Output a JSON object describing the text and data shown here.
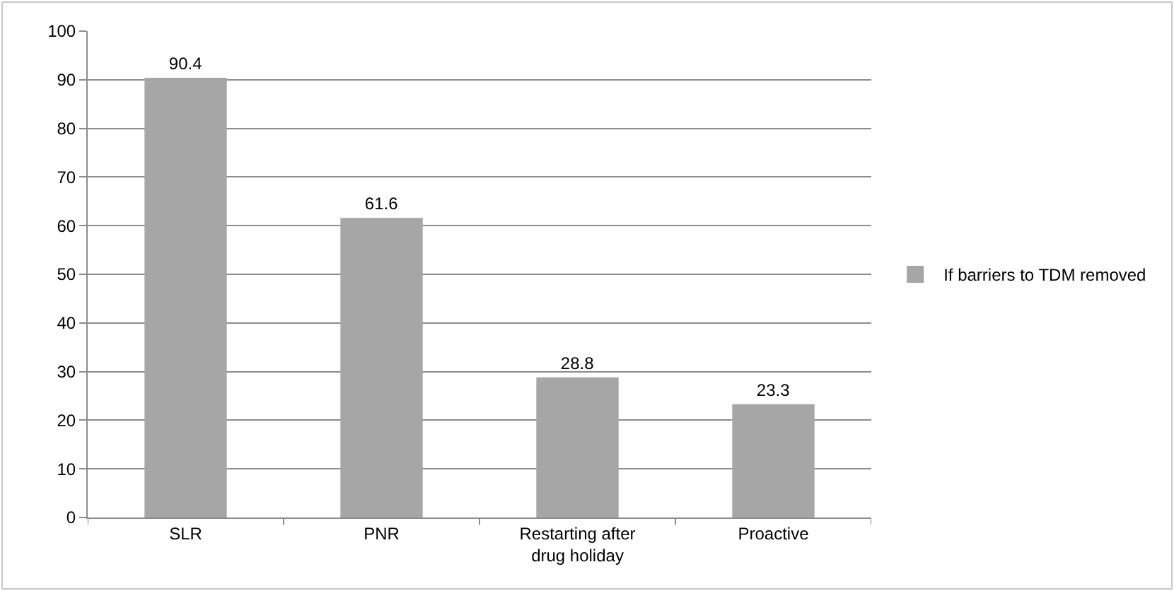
{
  "chart_data": {
    "type": "bar",
    "categories": [
      "SLR",
      "PNR",
      "Restarting after drug holiday",
      "Proactive"
    ],
    "series": [
      {
        "name": "If barriers to TDM removed",
        "color": "#a6a6a6",
        "values": [
          90.4,
          61.6,
          28.8,
          23.3
        ]
      }
    ],
    "ylim": [
      0,
      100
    ],
    "yticks": [
      0,
      10,
      20,
      30,
      40,
      50,
      60,
      70,
      80,
      90,
      100
    ],
    "grid": "y",
    "legend": "right",
    "data_labels": true
  }
}
